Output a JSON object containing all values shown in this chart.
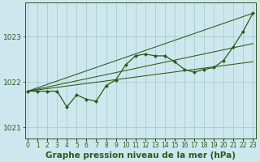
{
  "title": "Graphe pression niveau de la mer (hPa)",
  "bg_color": "#cce8ee",
  "grid_color": "#aacccc",
  "line_color": "#2d5a1b",
  "x_labels": [
    "0",
    "1",
    "2",
    "3",
    "4",
    "5",
    "6",
    "7",
    "8",
    "9",
    "10",
    "11",
    "12",
    "13",
    "14",
    "15",
    "16",
    "17",
    "18",
    "19",
    "20",
    "21",
    "22",
    "23"
  ],
  "hours": [
    0,
    1,
    2,
    3,
    4,
    5,
    6,
    7,
    8,
    9,
    10,
    11,
    12,
    13,
    14,
    15,
    16,
    17,
    18,
    19,
    20,
    21,
    22,
    23
  ],
  "pressure": [
    1021.8,
    1021.8,
    1021.8,
    1021.8,
    1021.45,
    1021.72,
    1021.62,
    1021.58,
    1021.92,
    1022.05,
    1022.38,
    1022.58,
    1022.62,
    1022.58,
    1022.58,
    1022.45,
    1022.28,
    1022.22,
    1022.28,
    1022.32,
    1022.48,
    1022.78,
    1023.12,
    1023.52
  ],
  "ylim": [
    1020.75,
    1023.75
  ],
  "yticks": [
    1021,
    1022,
    1023
  ],
  "ylabel_fontsize": 6.5,
  "xlabel_fontsize": 5.5,
  "title_fontsize": 7.5,
  "marker_size": 2.2,
  "line_width": 0.9,
  "trend_lines": [
    [
      1021.8,
      1023.52
    ],
    [
      1021.8,
      1022.85
    ],
    [
      1021.8,
      1022.45
    ]
  ]
}
